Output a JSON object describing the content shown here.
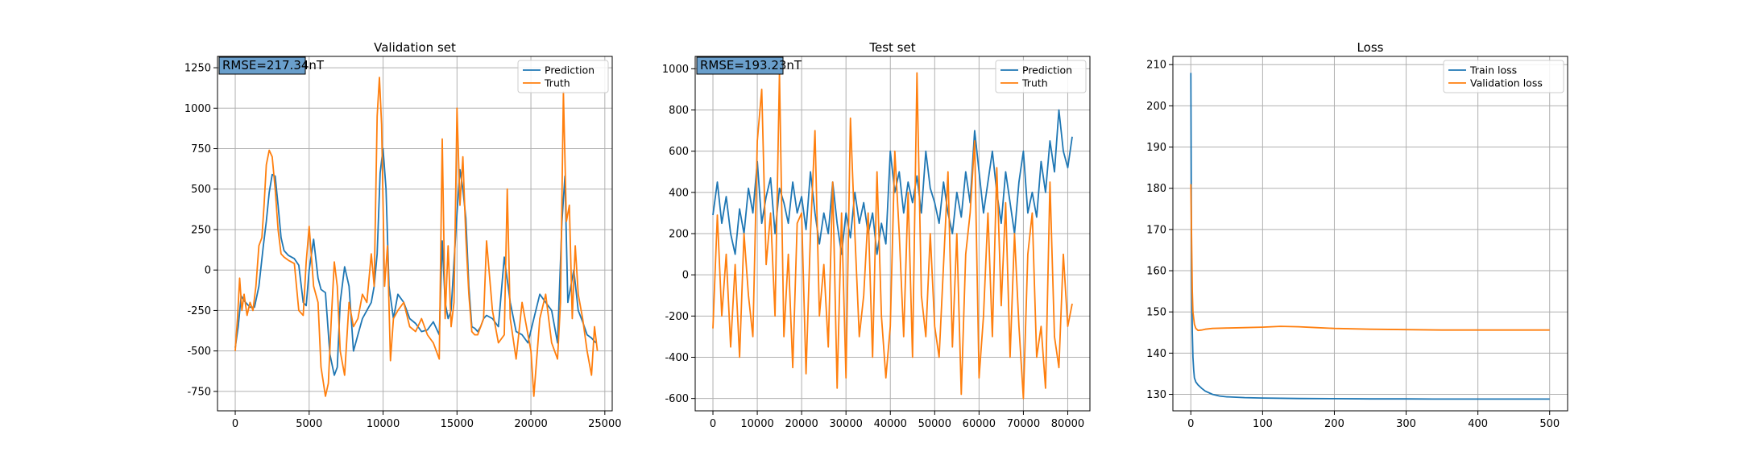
{
  "colors": {
    "series1": "#1f77b4",
    "series2": "#ff7f0e",
    "grid": "#b0b0b0",
    "rmse_box": "#6a9fcc"
  },
  "chart_data": [
    {
      "type": "line",
      "title": "Validation set",
      "xlabel": "",
      "ylabel": "",
      "xlim": [
        -1200,
        25500
      ],
      "ylim": [
        -870,
        1320
      ],
      "xticks": [
        0,
        5000,
        10000,
        15000,
        20000,
        25000
      ],
      "yticks": [
        -750,
        -500,
        -250,
        0,
        250,
        500,
        750,
        1000,
        1250
      ],
      "grid": true,
      "legend_position": "top-right",
      "annotation": "RMSE=217.34nT",
      "series": [
        {
          "name": "Prediction",
          "color": "#1f77b4",
          "x": [
            0,
            200,
            400,
            600,
            800,
            1000,
            1300,
            1600,
            1900,
            2100,
            2300,
            2500,
            2700,
            2900,
            3100,
            3300,
            3600,
            4000,
            4300,
            4600,
            4800,
            5000,
            5300,
            5600,
            5800,
            6100,
            6400,
            6700,
            6900,
            7100,
            7400,
            7700,
            8000,
            8300,
            8600,
            8900,
            9200,
            9400,
            9600,
            9800,
            10000,
            10200,
            10400,
            10700,
            11000,
            11400,
            11800,
            12200,
            12600,
            13000,
            13400,
            13800,
            14000,
            14200,
            14400,
            14600,
            14800,
            15000,
            15200,
            15400,
            15600,
            15800,
            16000,
            16200,
            16400,
            16600,
            16800,
            17000,
            17400,
            17800,
            18200,
            18600,
            19000,
            19400,
            19800,
            20200,
            20600,
            21000,
            21400,
            21800,
            22100,
            22300,
            22500,
            22700,
            22900,
            23200,
            23500,
            23800,
            24100,
            24400
          ],
          "y": [
            -480,
            -350,
            -160,
            -190,
            -210,
            -230,
            -230,
            -100,
            150,
            300,
            480,
            590,
            580,
            400,
            200,
            120,
            90,
            70,
            30,
            -200,
            -220,
            0,
            190,
            -50,
            -120,
            -140,
            -520,
            -650,
            -600,
            -200,
            20,
            -100,
            -500,
            -400,
            -300,
            -250,
            -200,
            -100,
            100,
            600,
            750,
            500,
            -100,
            -300,
            -150,
            -200,
            -300,
            -330,
            -380,
            -370,
            -320,
            -400,
            180,
            -200,
            -300,
            -250,
            50,
            350,
            620,
            500,
            320,
            -100,
            -350,
            -360,
            -380,
            -350,
            -300,
            -280,
            -300,
            -350,
            80,
            -200,
            -380,
            -400,
            -450,
            -300,
            -150,
            -200,
            -250,
            -450,
            300,
            580,
            -200,
            -100,
            0,
            -250,
            -320,
            -400,
            -420,
            -450
          ]
        },
        {
          "name": "Truth",
          "color": "#ff7f0e",
          "x": [
            0,
            150,
            300,
            450,
            600,
            800,
            1000,
            1200,
            1400,
            1600,
            1800,
            1950,
            2100,
            2300,
            2500,
            2700,
            2900,
            3100,
            3300,
            3600,
            4000,
            4300,
            4600,
            4800,
            5000,
            5300,
            5600,
            5800,
            6100,
            6300,
            6500,
            6700,
            6900,
            7100,
            7400,
            7700,
            8000,
            8300,
            8600,
            8900,
            9200,
            9400,
            9600,
            9750,
            9900,
            10100,
            10300,
            10500,
            10700,
            11000,
            11400,
            11800,
            12200,
            12600,
            13000,
            13400,
            13800,
            14000,
            14200,
            14400,
            14600,
            14800,
            15000,
            15200,
            15400,
            15600,
            15800,
            16000,
            16200,
            16400,
            16600,
            16800,
            17000,
            17400,
            17800,
            18200,
            18400,
            18600,
            19000,
            19400,
            19800,
            20000,
            20200,
            20600,
            21000,
            21400,
            21800,
            22000,
            22200,
            22400,
            22600,
            22800,
            23000,
            23200,
            23500,
            23800,
            24100,
            24300,
            24500
          ],
          "y": [
            -500,
            -300,
            -50,
            -250,
            -150,
            -280,
            -200,
            -250,
            -100,
            150,
            200,
            400,
            650,
            740,
            700,
            500,
            250,
            100,
            80,
            60,
            40,
            -250,
            -280,
            50,
            270,
            -100,
            -200,
            -600,
            -780,
            -700,
            -300,
            50,
            -100,
            -500,
            -650,
            -200,
            -350,
            -300,
            -150,
            -200,
            100,
            -100,
            950,
            1190,
            900,
            -100,
            150,
            -560,
            -300,
            -250,
            -200,
            -350,
            -380,
            -300,
            -400,
            -450,
            -550,
            810,
            -300,
            150,
            -350,
            -200,
            1000,
            400,
            700,
            200,
            -150,
            -380,
            -400,
            -400,
            -350,
            -300,
            180,
            -250,
            -450,
            -400,
            500,
            -300,
            -550,
            -200,
            -400,
            -500,
            -780,
            -300,
            -150,
            -450,
            -550,
            -200,
            1100,
            300,
            400,
            -300,
            150,
            -150,
            -300,
            -500,
            -650,
            -350,
            -500
          ]
        }
      ]
    },
    {
      "type": "line",
      "title": "Test set",
      "xlabel": "",
      "ylabel": "",
      "xlim": [
        -4000,
        85000
      ],
      "ylim": [
        -660,
        1060
      ],
      "xticks": [
        0,
        10000,
        20000,
        30000,
        40000,
        50000,
        60000,
        70000,
        80000
      ],
      "yticks": [
        -600,
        -400,
        -200,
        0,
        200,
        400,
        600,
        800,
        1000
      ],
      "grid": true,
      "legend_position": "top-right",
      "annotation": "RMSE=193.23nT",
      "series": [
        {
          "name": "Prediction",
          "color": "#1f77b4",
          "x": [
            0,
            1000,
            2000,
            3000,
            4000,
            5000,
            6000,
            7000,
            8000,
            9000,
            10000,
            11000,
            12000,
            13000,
            14000,
            15000,
            16000,
            17000,
            18000,
            19000,
            20000,
            21000,
            22000,
            23000,
            24000,
            25000,
            26000,
            27000,
            28000,
            29000,
            30000,
            31000,
            32000,
            33000,
            34000,
            35000,
            36000,
            37000,
            38000,
            39000,
            40000,
            41000,
            42000,
            43000,
            44000,
            45000,
            46000,
            47000,
            48000,
            49000,
            50000,
            51000,
            52000,
            53000,
            54000,
            55000,
            56000,
            57000,
            58000,
            59000,
            60000,
            61000,
            62000,
            63000,
            64000,
            65000,
            66000,
            67000,
            68000,
            69000,
            70000,
            71000,
            72000,
            73000,
            74000,
            75000,
            76000,
            77000,
            78000,
            79000,
            80000,
            81000
          ],
          "y": [
            290,
            450,
            250,
            380,
            200,
            100,
            320,
            200,
            420,
            300,
            550,
            250,
            380,
            470,
            200,
            420,
            350,
            250,
            450,
            300,
            380,
            220,
            500,
            300,
            150,
            300,
            200,
            450,
            250,
            100,
            300,
            180,
            400,
            250,
            350,
            200,
            300,
            100,
            250,
            150,
            600,
            400,
            500,
            300,
            450,
            350,
            480,
            300,
            600,
            420,
            350,
            250,
            450,
            300,
            200,
            400,
            280,
            500,
            350,
            700,
            500,
            300,
            450,
            600,
            400,
            250,
            500,
            350,
            200,
            450,
            600,
            300,
            400,
            280,
            550,
            400,
            650,
            500,
            800,
            600,
            520,
            670
          ]
        },
        {
          "name": "Truth",
          "color": "#ff7f0e",
          "x": [
            0,
            1000,
            2000,
            3000,
            4000,
            5000,
            6000,
            7000,
            8000,
            9000,
            10000,
            11000,
            12000,
            13000,
            14000,
            15000,
            16000,
            17000,
            18000,
            19000,
            20000,
            21000,
            22000,
            23000,
            24000,
            25000,
            26000,
            27000,
            28000,
            29000,
            30000,
            31000,
            32000,
            33000,
            34000,
            35000,
            36000,
            37000,
            38000,
            39000,
            40000,
            41000,
            42000,
            43000,
            44000,
            45000,
            46000,
            47000,
            48000,
            49000,
            50000,
            51000,
            52000,
            53000,
            54000,
            55000,
            56000,
            57000,
            58000,
            59000,
            60000,
            61000,
            62000,
            63000,
            64000,
            65000,
            66000,
            67000,
            68000,
            69000,
            70000,
            71000,
            72000,
            73000,
            74000,
            75000,
            76000,
            77000,
            78000,
            79000,
            80000,
            81000
          ],
          "y": [
            -260,
            290,
            -200,
            100,
            -350,
            50,
            -400,
            200,
            -100,
            -300,
            650,
            900,
            50,
            300,
            -200,
            980,
            -300,
            100,
            -450,
            250,
            300,
            -480,
            200,
            700,
            -200,
            50,
            -350,
            450,
            -550,
            300,
            -500,
            760,
            200,
            -300,
            -100,
            300,
            -400,
            500,
            -200,
            -500,
            -250,
            600,
            200,
            -300,
            400,
            -400,
            980,
            -100,
            -300,
            200,
            -250,
            -400,
            50,
            500,
            -350,
            200,
            -580,
            100,
            300,
            650,
            -500,
            -200,
            300,
            -300,
            520,
            -150,
            350,
            -400,
            200,
            -250,
            -600,
            100,
            300,
            -400,
            -250,
            -550,
            450,
            -300,
            -450,
            100,
            -250,
            -140
          ]
        }
      ]
    },
    {
      "type": "line",
      "title": "Loss",
      "xlabel": "",
      "ylabel": "",
      "xlim": [
        -25,
        525
      ],
      "ylim": [
        126,
        212
      ],
      "xticks": [
        0,
        100,
        200,
        300,
        400,
        500
      ],
      "yticks": [
        130,
        140,
        150,
        160,
        170,
        180,
        190,
        200,
        210
      ],
      "grid": true,
      "legend_position": "top-right",
      "series": [
        {
          "name": "Train loss",
          "color": "#1f77b4",
          "x": [
            0,
            1,
            2,
            3,
            4,
            5,
            7,
            10,
            15,
            20,
            30,
            40,
            50,
            75,
            100,
            150,
            200,
            250,
            300,
            350,
            400,
            450,
            500
          ],
          "y": [
            208,
            160,
            145,
            139,
            136,
            134,
            133,
            132.3,
            131.5,
            130.8,
            130.0,
            129.6,
            129.4,
            129.2,
            129.1,
            129.0,
            128.95,
            128.9,
            128.9,
            128.85,
            128.85,
            128.85,
            128.85
          ]
        },
        {
          "name": "Validation loss",
          "color": "#ff7f0e",
          "x": [
            0,
            1,
            2,
            3,
            5,
            7,
            10,
            15,
            20,
            30,
            50,
            75,
            100,
            125,
            150,
            175,
            200,
            225,
            250,
            300,
            350,
            400,
            450,
            500
          ],
          "y": [
            181,
            168,
            155,
            150,
            147,
            146,
            145.5,
            145.6,
            145.8,
            146.0,
            146.1,
            146.2,
            146.3,
            146.5,
            146.4,
            146.2,
            146.0,
            145.9,
            145.8,
            145.7,
            145.6,
            145.6,
            145.6,
            145.6
          ]
        }
      ]
    }
  ]
}
